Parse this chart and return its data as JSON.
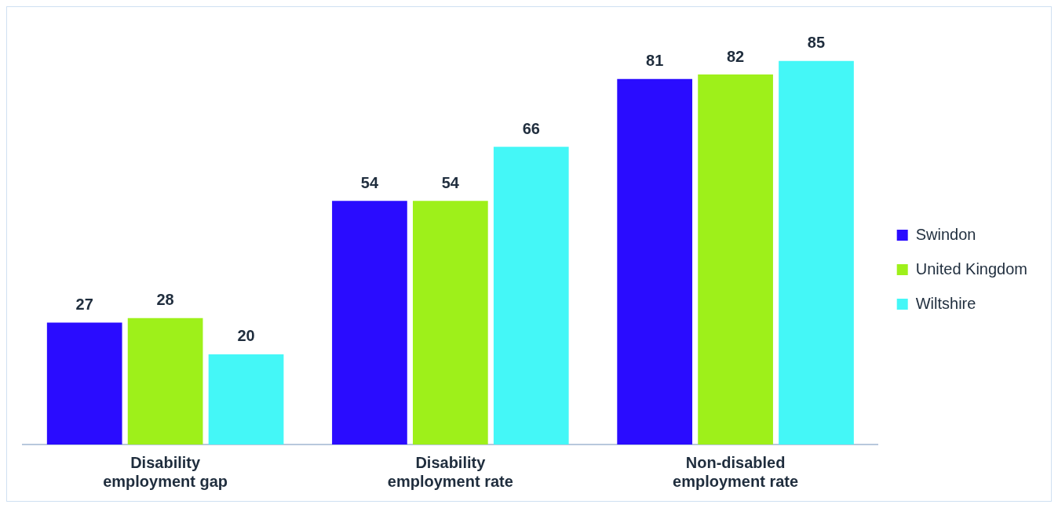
{
  "chart_data": {
    "type": "bar",
    "categories": [
      "Disability employment gap",
      "Disability employment rate",
      "Non-disabled employment rate"
    ],
    "series": [
      {
        "name": "Swindon",
        "color": "#2a0cff",
        "values": [
          27,
          54,
          81
        ]
      },
      {
        "name": "United Kingdom",
        "color": "#9ef01a",
        "values": [
          28,
          54,
          82
        ]
      },
      {
        "name": "Wiltshire",
        "color": "#44f7f7",
        "values": [
          20,
          66,
          85
        ]
      }
    ],
    "data_labels": true,
    "legend": "right",
    "grid": false
  }
}
